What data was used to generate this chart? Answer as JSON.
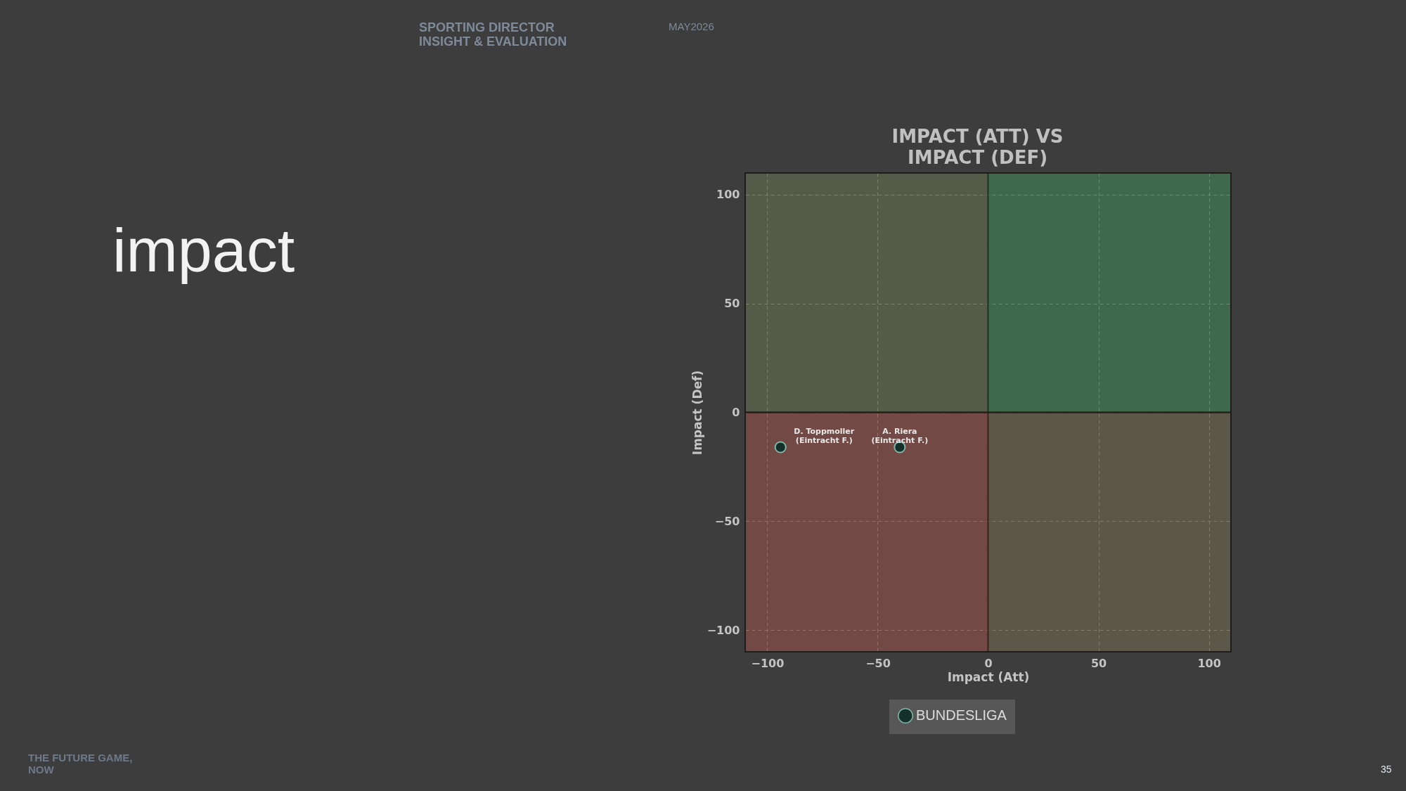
{
  "chart_data": {
    "type": "scatter",
    "title": "IMPACT (ATT) VS IMPACT (DEF)",
    "xlabel": "Impact (Att)",
    "ylabel": "Impact (Def)",
    "x": [
      -94,
      -40
    ],
    "series": [
      {
        "name": "BUNDESLIGA",
        "color": "#13302a",
        "values": [
          -16,
          -16
        ]
      }
    ],
    "xlim": [
      -110,
      110
    ],
    "ylim": [
      -110,
      110
    ],
    "xticks": [
      -100,
      -50,
      0,
      50,
      100
    ],
    "yticks": [
      -100,
      -50,
      0,
      50,
      100
    ],
    "grid": true,
    "legend": "bottom",
    "marker": "circle",
    "bands": [
      {
        "axis": "x",
        "from": -110,
        "to": 0,
        "color": "#b04848"
      },
      {
        "axis": "x",
        "from": 0,
        "to": 110,
        "color": "#2f9a5a"
      },
      {
        "axis": "y",
        "from": -110,
        "to": 0,
        "color": "#b04848"
      },
      {
        "axis": "y",
        "from": 0,
        "to": 110,
        "color": "#2f9a5a"
      }
    ],
    "annotations": [
      {
        "text": "D. Toppmoller\n(Eintracht F.)",
        "x": -94,
        "y": -16
      },
      {
        "text": "A. Riera\n(Eintracht F.)",
        "x": -40,
        "y": -16
      },
      "SPORTING DIRECTOR\nINSIGHT & EVALUATION",
      "MAY2026",
      "impact",
      "THE FUTURE GAME,\nNOW",
      "35"
    ]
  }
}
